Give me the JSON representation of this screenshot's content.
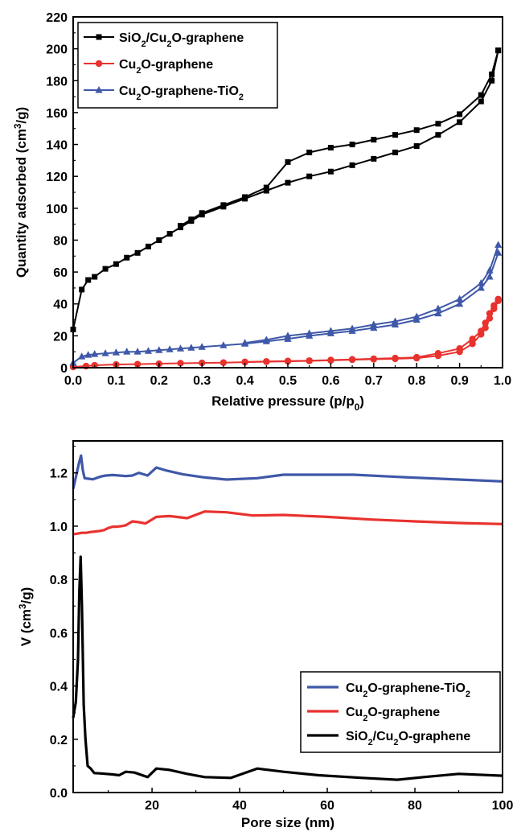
{
  "chart_data": [
    {
      "type": "line",
      "xlabel": {
        "main": "Relative pressure (p/p",
        "sub": "0",
        "tail": ")"
      },
      "ylabel": {
        "main": "Quantity adsorbed (cm",
        "sup": "3",
        "tail": "/g)"
      },
      "xlim": [
        0,
        1.0
      ],
      "ylim": [
        0,
        220
      ],
      "xticks": [
        "0.0",
        "0.1",
        "0.2",
        "0.3",
        "0.4",
        "0.5",
        "0.6",
        "0.7",
        "0.8",
        "0.9",
        "1.0"
      ],
      "yticks": [
        "0",
        "20",
        "40",
        "60",
        "80",
        "100",
        "120",
        "140",
        "160",
        "180",
        "200",
        "220"
      ],
      "legend_position": "top-left",
      "series": [
        {
          "name": [
            [
              "SiO",
              "n"
            ],
            [
              "2",
              "sub"
            ],
            [
              "/Cu",
              "n"
            ],
            [
              "2",
              "sub"
            ],
            [
              "O-graphene",
              "n"
            ]
          ],
          "color": "#000000",
          "marker": "square",
          "adsorption": [
            [
              0.0,
              24
            ],
            [
              0.02,
              49
            ],
            [
              0.035,
              55
            ],
            [
              0.05,
              57
            ],
            [
              0.075,
              62
            ],
            [
              0.1,
              65
            ],
            [
              0.125,
              69
            ],
            [
              0.15,
              72
            ],
            [
              0.175,
              76
            ],
            [
              0.2,
              80
            ],
            [
              0.225,
              84
            ],
            [
              0.25,
              88
            ],
            [
              0.275,
              92
            ],
            [
              0.3,
              96
            ],
            [
              0.35,
              101
            ],
            [
              0.4,
              106
            ],
            [
              0.45,
              111
            ],
            [
              0.5,
              116
            ],
            [
              0.55,
              120
            ],
            [
              0.6,
              123
            ],
            [
              0.65,
              127
            ],
            [
              0.7,
              131
            ],
            [
              0.75,
              135
            ],
            [
              0.8,
              139
            ],
            [
              0.85,
              146
            ],
            [
              0.9,
              154
            ],
            [
              0.95,
              167
            ],
            [
              0.975,
              180
            ],
            [
              0.99,
              199
            ]
          ],
          "desorption": [
            [
              0.99,
              199
            ],
            [
              0.975,
              184
            ],
            [
              0.95,
              171
            ],
            [
              0.9,
              159
            ],
            [
              0.85,
              153
            ],
            [
              0.8,
              149
            ],
            [
              0.75,
              146
            ],
            [
              0.7,
              143
            ],
            [
              0.65,
              140
            ],
            [
              0.6,
              138
            ],
            [
              0.55,
              135
            ],
            [
              0.5,
              129
            ],
            [
              0.45,
              113
            ],
            [
              0.4,
              107
            ],
            [
              0.35,
              102
            ],
            [
              0.3,
              97
            ],
            [
              0.275,
              93
            ],
            [
              0.25,
              89
            ]
          ]
        },
        {
          "name": [
            [
              "Cu",
              "n"
            ],
            [
              "2",
              "sub"
            ],
            [
              "O-graphene",
              "n"
            ]
          ],
          "color": "#e8322e",
          "marker": "circle",
          "adsorption": [
            [
              0.0,
              0.5
            ],
            [
              0.03,
              1
            ],
            [
              0.05,
              1.5
            ],
            [
              0.1,
              2
            ],
            [
              0.15,
              2.2
            ],
            [
              0.2,
              2.5
            ],
            [
              0.25,
              2.8
            ],
            [
              0.3,
              3
            ],
            [
              0.35,
              3.2
            ],
            [
              0.4,
              3.5
            ],
            [
              0.45,
              3.8
            ],
            [
              0.5,
              4
            ],
            [
              0.55,
              4.3
            ],
            [
              0.6,
              4.6
            ],
            [
              0.65,
              5
            ],
            [
              0.7,
              5.3
            ],
            [
              0.75,
              5.6
            ],
            [
              0.8,
              6
            ],
            [
              0.85,
              7.5
            ],
            [
              0.9,
              10
            ],
            [
              0.93,
              15
            ],
            [
              0.95,
              21
            ],
            [
              0.96,
              25
            ],
            [
              0.97,
              31
            ],
            [
              0.98,
              37
            ],
            [
              0.99,
              42
            ]
          ],
          "desorption": [
            [
              0.99,
              43
            ],
            [
              0.98,
              39
            ],
            [
              0.97,
              34
            ],
            [
              0.96,
              28
            ],
            [
              0.95,
              23
            ],
            [
              0.93,
              18
            ],
            [
              0.9,
              12
            ],
            [
              0.85,
              9
            ],
            [
              0.8,
              6.5
            ],
            [
              0.75,
              6
            ],
            [
              0.7,
              5.6
            ],
            [
              0.65,
              5.2
            ],
            [
              0.6,
              4.8
            ],
            [
              0.55,
              4.4
            ],
            [
              0.5,
              4.2
            ],
            [
              0.45,
              3.9
            ],
            [
              0.4,
              3.6
            ]
          ]
        },
        {
          "name": [
            [
              "Cu",
              "n"
            ],
            [
              "2",
              "sub"
            ],
            [
              "O-graphene-TiO",
              "n"
            ],
            [
              "2",
              "sub"
            ]
          ],
          "color": "#3f58a8",
          "marker": "triangle",
          "adsorption": [
            [
              0.0,
              3
            ],
            [
              0.02,
              7
            ],
            [
              0.035,
              8
            ],
            [
              0.05,
              8.5
            ],
            [
              0.075,
              9
            ],
            [
              0.1,
              9.5
            ],
            [
              0.125,
              10
            ],
            [
              0.15,
              10
            ],
            [
              0.175,
              10.5
            ],
            [
              0.2,
              11
            ],
            [
              0.225,
              11.5
            ],
            [
              0.25,
              12
            ],
            [
              0.275,
              12.5
            ],
            [
              0.3,
              13
            ],
            [
              0.35,
              14
            ],
            [
              0.4,
              15
            ],
            [
              0.45,
              16.5
            ],
            [
              0.5,
              18
            ],
            [
              0.55,
              20
            ],
            [
              0.6,
              21.5
            ],
            [
              0.65,
              23
            ],
            [
              0.7,
              25
            ],
            [
              0.75,
              27
            ],
            [
              0.8,
              30
            ],
            [
              0.85,
              34
            ],
            [
              0.9,
              40
            ],
            [
              0.95,
              50
            ],
            [
              0.97,
              57
            ],
            [
              0.99,
              72
            ]
          ],
          "desorption": [
            [
              0.99,
              77
            ],
            [
              0.97,
              61
            ],
            [
              0.95,
              53
            ],
            [
              0.9,
              43
            ],
            [
              0.85,
              37
            ],
            [
              0.8,
              32
            ],
            [
              0.75,
              29
            ],
            [
              0.7,
              27
            ],
            [
              0.65,
              24.5
            ],
            [
              0.6,
              23
            ],
            [
              0.55,
              21.5
            ],
            [
              0.5,
              20
            ],
            [
              0.45,
              17.5
            ],
            [
              0.4,
              15.5
            ]
          ]
        }
      ]
    },
    {
      "type": "line",
      "xlabel": {
        "main": "Pore size (nm)"
      },
      "ylabel": {
        "main": "V (cm",
        "sup": "3",
        "tail": "/g)"
      },
      "xlim": [
        2,
        100
      ],
      "ylim": [
        0,
        1.32
      ],
      "xticks": [
        "20",
        "40",
        "60",
        "80",
        "100"
      ],
      "xtick_values": [
        20,
        40,
        60,
        80,
        100
      ],
      "yticks": [
        "0.0",
        "0.2",
        "0.4",
        "0.6",
        "0.8",
        "1.0",
        "1.2"
      ],
      "ytick_values": [
        0.0,
        0.2,
        0.4,
        0.6,
        0.8,
        1.0,
        1.2
      ],
      "legend_position": "bottom-right",
      "series": [
        {
          "name": [
            [
              "Cu",
              "n"
            ],
            [
              "2",
              "sub"
            ],
            [
              "O-graphene-TiO",
              "n"
            ],
            [
              "2",
              "sub"
            ]
          ],
          "color": "#3f58a8",
          "points": [
            [
              2.0,
              1.14
            ],
            [
              2.7,
              1.19
            ],
            [
              3.3,
              1.235
            ],
            [
              3.8,
              1.265
            ],
            [
              4.2,
              1.21
            ],
            [
              4.6,
              1.18
            ],
            [
              5.5,
              1.178
            ],
            [
              6.5,
              1.176
            ],
            [
              7.5,
              1.182
            ],
            [
              8.5,
              1.187
            ],
            [
              9.5,
              1.19
            ],
            [
              11,
              1.192
            ],
            [
              12.5,
              1.19
            ],
            [
              14,
              1.188
            ],
            [
              15.5,
              1.19
            ],
            [
              17,
              1.2
            ],
            [
              19,
              1.19
            ],
            [
              21,
              1.22
            ],
            [
              23,
              1.21
            ],
            [
              27,
              1.195
            ],
            [
              32,
              1.183
            ],
            [
              37,
              1.175
            ],
            [
              44,
              1.18
            ],
            [
              50,
              1.193
            ],
            [
              58,
              1.193
            ],
            [
              66,
              1.193
            ],
            [
              76,
              1.185
            ],
            [
              90,
              1.175
            ],
            [
              100,
              1.168
            ]
          ]
        },
        {
          "name": [
            [
              "Cu",
              "n"
            ],
            [
              "2",
              "sub"
            ],
            [
              "O-graphene",
              "n"
            ]
          ],
          "color": "#e8322e",
          "points": [
            [
              2.0,
              0.97
            ],
            [
              3,
              0.972
            ],
            [
              4,
              0.975
            ],
            [
              5,
              0.975
            ],
            [
              6,
              0.978
            ],
            [
              7,
              0.98
            ],
            [
              8,
              0.982
            ],
            [
              9,
              0.985
            ],
            [
              10,
              0.993
            ],
            [
              11,
              0.998
            ],
            [
              12,
              0.998
            ],
            [
              13,
              1.0
            ],
            [
              14,
              1.003
            ],
            [
              15.5,
              1.018
            ],
            [
              17,
              1.015
            ],
            [
              18.5,
              1.01
            ],
            [
              21,
              1.035
            ],
            [
              24,
              1.038
            ],
            [
              28,
              1.03
            ],
            [
              32,
              1.055
            ],
            [
              37,
              1.052
            ],
            [
              43,
              1.04
            ],
            [
              50,
              1.042
            ],
            [
              60,
              1.035
            ],
            [
              70,
              1.025
            ],
            [
              80,
              1.018
            ],
            [
              90,
              1.012
            ],
            [
              100,
              1.008
            ]
          ]
        },
        {
          "name": [
            [
              "SiO",
              "n"
            ],
            [
              "2",
              "sub"
            ],
            [
              "/Cu",
              "n"
            ],
            [
              "2",
              "sub"
            ],
            [
              "O-graphene",
              "n"
            ]
          ],
          "color": "#000000",
          "points": [
            [
              2.0,
              0.28
            ],
            [
              2.6,
              0.34
            ],
            [
              3.1,
              0.5
            ],
            [
              3.4,
              0.75
            ],
            [
              3.7,
              0.885
            ],
            [
              4.0,
              0.7
            ],
            [
              4.4,
              0.33
            ],
            [
              4.8,
              0.2
            ],
            [
              5.3,
              0.1
            ],
            [
              6,
              0.09
            ],
            [
              6.8,
              0.073
            ],
            [
              8,
              0.072
            ],
            [
              9.5,
              0.07
            ],
            [
              11,
              0.068
            ],
            [
              12.5,
              0.065
            ],
            [
              14,
              0.078
            ],
            [
              16,
              0.075
            ],
            [
              19,
              0.058
            ],
            [
              21,
              0.09
            ],
            [
              24,
              0.085
            ],
            [
              28,
              0.07
            ],
            [
              32,
              0.058
            ],
            [
              38,
              0.055
            ],
            [
              44,
              0.09
            ],
            [
              50,
              0.078
            ],
            [
              58,
              0.065
            ],
            [
              68,
              0.055
            ],
            [
              76,
              0.048
            ],
            [
              82,
              0.058
            ],
            [
              90,
              0.07
            ],
            [
              100,
              0.063
            ]
          ]
        }
      ]
    }
  ]
}
